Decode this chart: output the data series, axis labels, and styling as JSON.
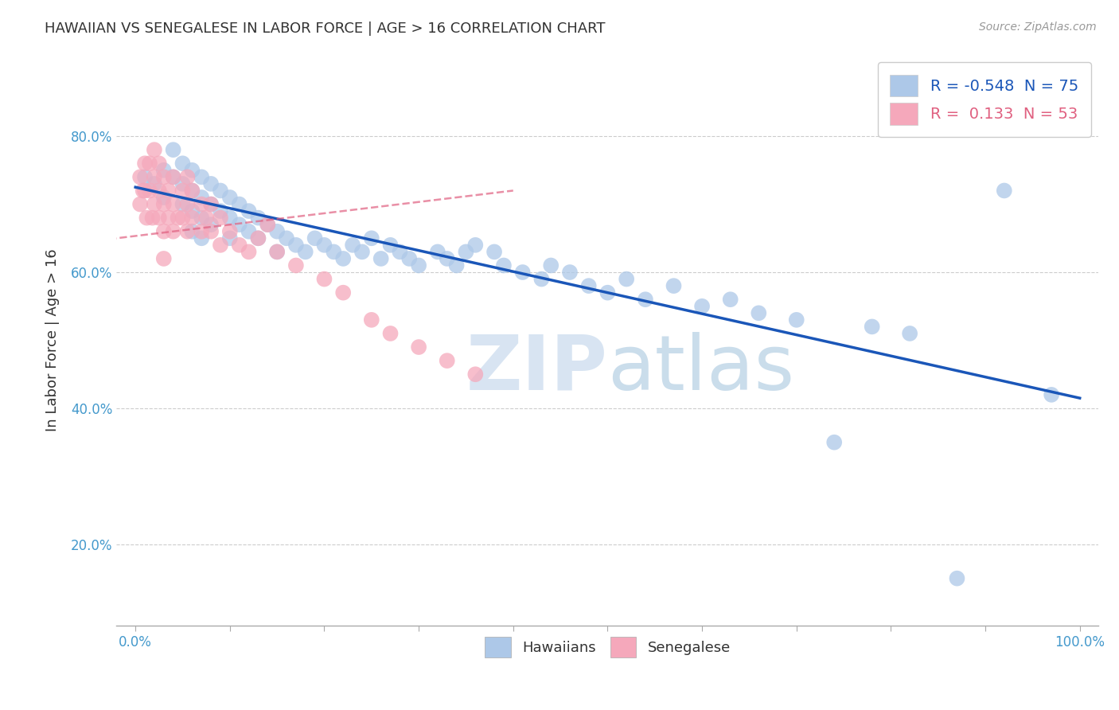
{
  "title": "HAWAIIAN VS SENEGALESE IN LABOR FORCE | AGE > 16 CORRELATION CHART",
  "source": "Source: ZipAtlas.com",
  "ylabel": "In Labor Force | Age > 16",
  "watermark_zip": "ZIP",
  "watermark_atlas": "atlas",
  "xlim": [
    -0.02,
    1.02
  ],
  "ylim": [
    0.08,
    0.92
  ],
  "xticks": [
    0.0,
    0.1,
    0.2,
    0.3,
    0.4,
    0.5,
    0.6,
    0.7,
    0.8,
    0.9,
    1.0
  ],
  "xtick_labels_show": [
    0,
    5,
    10
  ],
  "yticks": [
    0.2,
    0.4,
    0.6,
    0.8
  ],
  "ytick_labels": [
    "20.0%",
    "40.0%",
    "60.0%",
    "80.0%"
  ],
  "hawaiian_R": -0.548,
  "hawaiian_N": 75,
  "senegalese_R": 0.133,
  "senegalese_N": 53,
  "hawaiian_color": "#adc8e8",
  "senegalese_color": "#f5a8bb",
  "hawaiian_trend_color": "#1a56b8",
  "senegalese_trend_color": "#e06080",
  "legend_label_hawaiian": "Hawaiians",
  "legend_label_senegalese": "Senegalese",
  "hawaiian_x": [
    0.01,
    0.02,
    0.03,
    0.03,
    0.04,
    0.04,
    0.05,
    0.05,
    0.05,
    0.06,
    0.06,
    0.06,
    0.06,
    0.07,
    0.07,
    0.07,
    0.07,
    0.08,
    0.08,
    0.08,
    0.09,
    0.09,
    0.1,
    0.1,
    0.1,
    0.11,
    0.11,
    0.12,
    0.12,
    0.13,
    0.13,
    0.14,
    0.15,
    0.15,
    0.16,
    0.17,
    0.18,
    0.19,
    0.2,
    0.21,
    0.22,
    0.23,
    0.24,
    0.25,
    0.26,
    0.27,
    0.28,
    0.29,
    0.3,
    0.32,
    0.33,
    0.34,
    0.35,
    0.36,
    0.38,
    0.39,
    0.41,
    0.43,
    0.44,
    0.46,
    0.48,
    0.5,
    0.52,
    0.54,
    0.57,
    0.6,
    0.63,
    0.66,
    0.7,
    0.74,
    0.78,
    0.82,
    0.87,
    0.92,
    0.97
  ],
  "hawaiian_y": [
    0.74,
    0.73,
    0.75,
    0.71,
    0.78,
    0.74,
    0.76,
    0.73,
    0.7,
    0.75,
    0.72,
    0.69,
    0.66,
    0.74,
    0.71,
    0.68,
    0.65,
    0.73,
    0.7,
    0.67,
    0.72,
    0.69,
    0.71,
    0.68,
    0.65,
    0.7,
    0.67,
    0.69,
    0.66,
    0.68,
    0.65,
    0.67,
    0.66,
    0.63,
    0.65,
    0.64,
    0.63,
    0.65,
    0.64,
    0.63,
    0.62,
    0.64,
    0.63,
    0.65,
    0.62,
    0.64,
    0.63,
    0.62,
    0.61,
    0.63,
    0.62,
    0.61,
    0.63,
    0.64,
    0.63,
    0.61,
    0.6,
    0.59,
    0.61,
    0.6,
    0.58,
    0.57,
    0.59,
    0.56,
    0.58,
    0.55,
    0.56,
    0.54,
    0.53,
    0.35,
    0.52,
    0.51,
    0.15,
    0.72,
    0.42
  ],
  "senegalese_x": [
    0.005,
    0.005,
    0.008,
    0.01,
    0.01,
    0.012,
    0.015,
    0.015,
    0.018,
    0.02,
    0.02,
    0.02,
    0.025,
    0.025,
    0.025,
    0.03,
    0.03,
    0.03,
    0.03,
    0.035,
    0.035,
    0.04,
    0.04,
    0.04,
    0.045,
    0.05,
    0.05,
    0.055,
    0.055,
    0.055,
    0.06,
    0.06,
    0.07,
    0.07,
    0.075,
    0.08,
    0.08,
    0.09,
    0.09,
    0.1,
    0.11,
    0.12,
    0.13,
    0.14,
    0.15,
    0.17,
    0.2,
    0.22,
    0.25,
    0.27,
    0.3,
    0.33,
    0.36
  ],
  "senegalese_y": [
    0.74,
    0.7,
    0.72,
    0.76,
    0.72,
    0.68,
    0.76,
    0.72,
    0.68,
    0.78,
    0.74,
    0.7,
    0.76,
    0.72,
    0.68,
    0.74,
    0.7,
    0.66,
    0.62,
    0.72,
    0.68,
    0.74,
    0.7,
    0.66,
    0.68,
    0.72,
    0.68,
    0.74,
    0.7,
    0.66,
    0.72,
    0.68,
    0.7,
    0.66,
    0.68,
    0.7,
    0.66,
    0.68,
    0.64,
    0.66,
    0.64,
    0.63,
    0.65,
    0.67,
    0.63,
    0.61,
    0.59,
    0.57,
    0.53,
    0.51,
    0.49,
    0.47,
    0.45
  ],
  "hawaiian_trend_x": [
    0.0,
    1.0
  ],
  "hawaiian_trend_y": [
    0.725,
    0.415
  ],
  "senegalese_trend_x": [
    -0.05,
    0.4
  ],
  "senegalese_trend_y": [
    0.645,
    0.72
  ]
}
